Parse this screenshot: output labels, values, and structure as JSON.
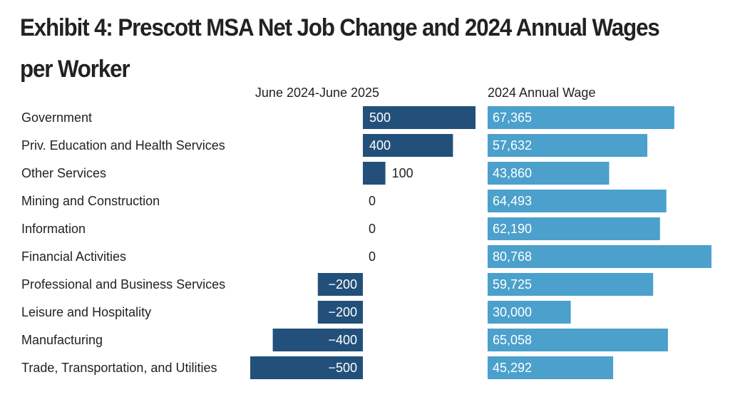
{
  "title": "Exhibit 4: Prescott MSA Net Job Change and 2024 Annual Wages per Worker",
  "chart_data": {
    "type": "bar",
    "orientation": "horizontal",
    "title": "Exhibit 4: Prescott MSA Net Job Change and 2024 Annual Wages per Worker",
    "categories": [
      "Government",
      "Priv. Education and Health Services",
      "Other Services",
      "Mining and Construction",
      "Information",
      "Financial Activities",
      "Professional and Business Services",
      "Leisure and Hospitality",
      "Manufacturing",
      "Trade, Transportation, and Utilities"
    ],
    "series": [
      {
        "name": "June 2024-June 2025",
        "values": [
          500,
          400,
          100,
          0,
          0,
          0,
          -200,
          -200,
          -400,
          -500
        ],
        "labels": [
          "500",
          "400",
          "100",
          "0",
          "0",
          "0",
          "−200",
          "−200",
          "−400",
          "−500"
        ],
        "color": "#22507a",
        "xlim": [
          -500,
          500
        ]
      },
      {
        "name": "2024 Annual Wage",
        "values": [
          67365,
          57632,
          43860,
          64493,
          62190,
          80768,
          59725,
          30000,
          65058,
          45292
        ],
        "labels": [
          "67,365",
          "57,632",
          "43,860",
          "64,493",
          "62,190",
          "80,768",
          "59,725",
          "30,000",
          "65,058",
          "45,292"
        ],
        "color": "#4ba0cc",
        "xlim": [
          0,
          80768
        ]
      }
    ]
  }
}
